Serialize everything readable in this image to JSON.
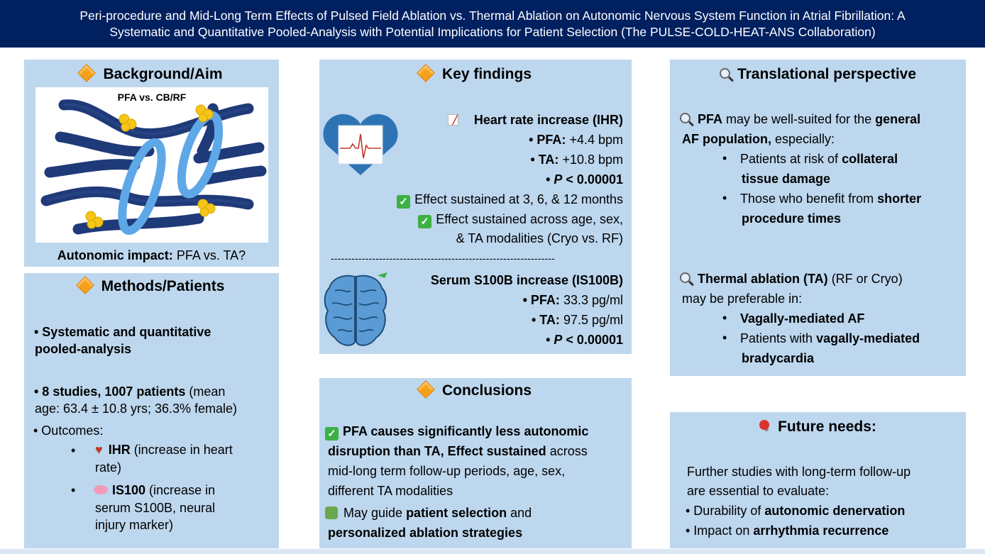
{
  "title": {
    "line1": "Peri-procedure and Mid-Long Term Effects of Pulsed Field Ablation vs. Thermal Ablation on Autonomic Nervous System Function in Atrial Fibrillation: A",
    "line2": "Systematic and Quantitative Pooled-Analysis with Potential Implications for Patient Selection (The PULSE-COLD-HEAT-ANS Collaboration)"
  },
  "background": {
    "heading": "Background/Aim",
    "image_label": "PFA vs. CB/RF",
    "impact_bold": "Autonomic impact:",
    "impact_rest": " PFA vs. TA?"
  },
  "methods": {
    "heading": "Methods/Patients",
    "item1_line1": "• Systematic and quantitative",
    "item1_line2": "pooled-analysis",
    "item2_bold": "• 8 studies, 1007 patients",
    "item2_rest": " (mean",
    "item2_line2": "age: 63.4 ± 10.8 yrs; 36.3% female)",
    "outcomes_label": "• Outcomes:",
    "ihr_bold": "IHR",
    "ihr_rest": " (increase in heart",
    "ihr_line2": "rate)",
    "is100_bold": "IS100",
    "is100_rest": " (increase in",
    "is100_line2": "serum S100B, neural",
    "is100_line3": "injury marker)"
  },
  "findings": {
    "heading": "Key findings",
    "ihr_title": "Heart rate increase (IHR)",
    "ihr_pfa_label": "• PFA:",
    "ihr_pfa_value": " +4.4 bpm",
    "ihr_ta_label": "• TA:",
    "ihr_ta_value": " +10.8 bpm",
    "ihr_p_bullet": "• ",
    "ihr_p_italic": "P",
    "ihr_p_rest": " < 0.00001",
    "sustained1": "Effect sustained at 3, 6, & 12 months",
    "sustained2_line1": "Effect sustained across age, sex,",
    "sustained2_line2": "& TA modalities (Cryo vs. RF)",
    "divider": "-----------------------------------------------------------------",
    "s100_title": "Serum S100B increase (IS100B)",
    "s100_pfa_label": "• PFA:",
    "s100_pfa_value": " 33.3 pg/ml",
    "s100_ta_label": "• TA:",
    "s100_ta_value": " 97.5 pg/ml",
    "s100_p_bullet": "• ",
    "s100_p_italic": "P",
    "s100_p_rest": " < 0.00001"
  },
  "conclusions": {
    "heading": "Conclusions",
    "c1_bold1": "PFA causes significantly less autonomic",
    "c1_bold2": "disruption than TA, Effect sustained",
    "c1_rest2": " across",
    "c1_line3": "mid-long term follow-up periods, age, sex,",
    "c1_line4": "different TA modalities",
    "c2_pre": "May guide ",
    "c2_bold": "patient selection",
    "c2_post": " and",
    "c2_line2": "personalized ablation strategies"
  },
  "translational": {
    "heading": "Translational perspective",
    "pfa_bold": "PFA",
    "pfa_mid": " may be well-suited for the ",
    "pfa_bold2": "general",
    "pfa_line2_bold": "AF population,",
    "pfa_line2_rest": " especially:",
    "pfa_b1_pre": "Patients at risk of ",
    "pfa_b1_bold": "collateral",
    "pfa_b1_line2": "tissue damage",
    "pfa_b2_pre": "Those who benefit from ",
    "pfa_b2_bold": "shorter",
    "pfa_b2_line2": "procedure times",
    "ta_bold": "Thermal ablation (TA)",
    "ta_rest": " (RF or Cryo)",
    "ta_line2": "may be preferable in:",
    "ta_b1": "Vagally-mediated AF",
    "ta_b2_pre": "Patients with ",
    "ta_b2_bold": "vagally-mediated",
    "ta_b2_line2": "bradycardia"
  },
  "future": {
    "heading": "Future needs:",
    "line1": "Further studies with long-term follow-up",
    "line2": "are essential to evaluate:",
    "b1_pre": "• Durability of ",
    "b1_bold": "autonomic denervation",
    "b2_pre": "• Impact on ",
    "b2_bold": "arrhythmia recurrence"
  },
  "colors": {
    "title_bg": "#002060",
    "panel_bg": "#bdd7ee",
    "accent_orange": "#f6a01a",
    "check_green": "#3cb043"
  }
}
